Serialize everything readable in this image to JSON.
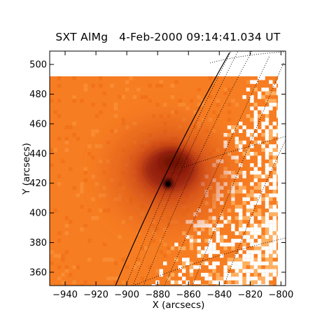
{
  "title": "SXT AlMg   4-Feb-2000 09:14:41.034 UT",
  "x_axis": {
    "label": "X (arcsecs)",
    "range": [
      -950,
      -797
    ],
    "ticks": [
      -940,
      -920,
      -900,
      -880,
      -860,
      -840,
      -820,
      -800
    ],
    "tick_labels": [
      "−940",
      "−920",
      "−900",
      "−880",
      "−860",
      "−840",
      "−820",
      "−800"
    ]
  },
  "y_axis": {
    "label": "Y (arcsecs)",
    "range": [
      351,
      509
    ],
    "ticks": [
      360,
      380,
      400,
      420,
      440,
      460,
      480,
      500
    ],
    "tick_labels": [
      "360",
      "380",
      "400",
      "420",
      "440",
      "460",
      "480",
      "500"
    ]
  },
  "image": {
    "kind": "soft X-ray solar image",
    "colormap": [
      "#ffffff",
      "#ffb060",
      "#f77d22",
      "#d44e14",
      "#8f1a0a",
      "#3a0500"
    ],
    "data_extent": {
      "x": [
        -950,
        -802
      ],
      "y": [
        351,
        492
      ]
    },
    "bright_source": {
      "x": -872,
      "y": 422
    },
    "peak_source": {
      "x": -873,
      "y": 418
    }
  },
  "limb_color": "#000000",
  "grid_style": "dotted"
}
